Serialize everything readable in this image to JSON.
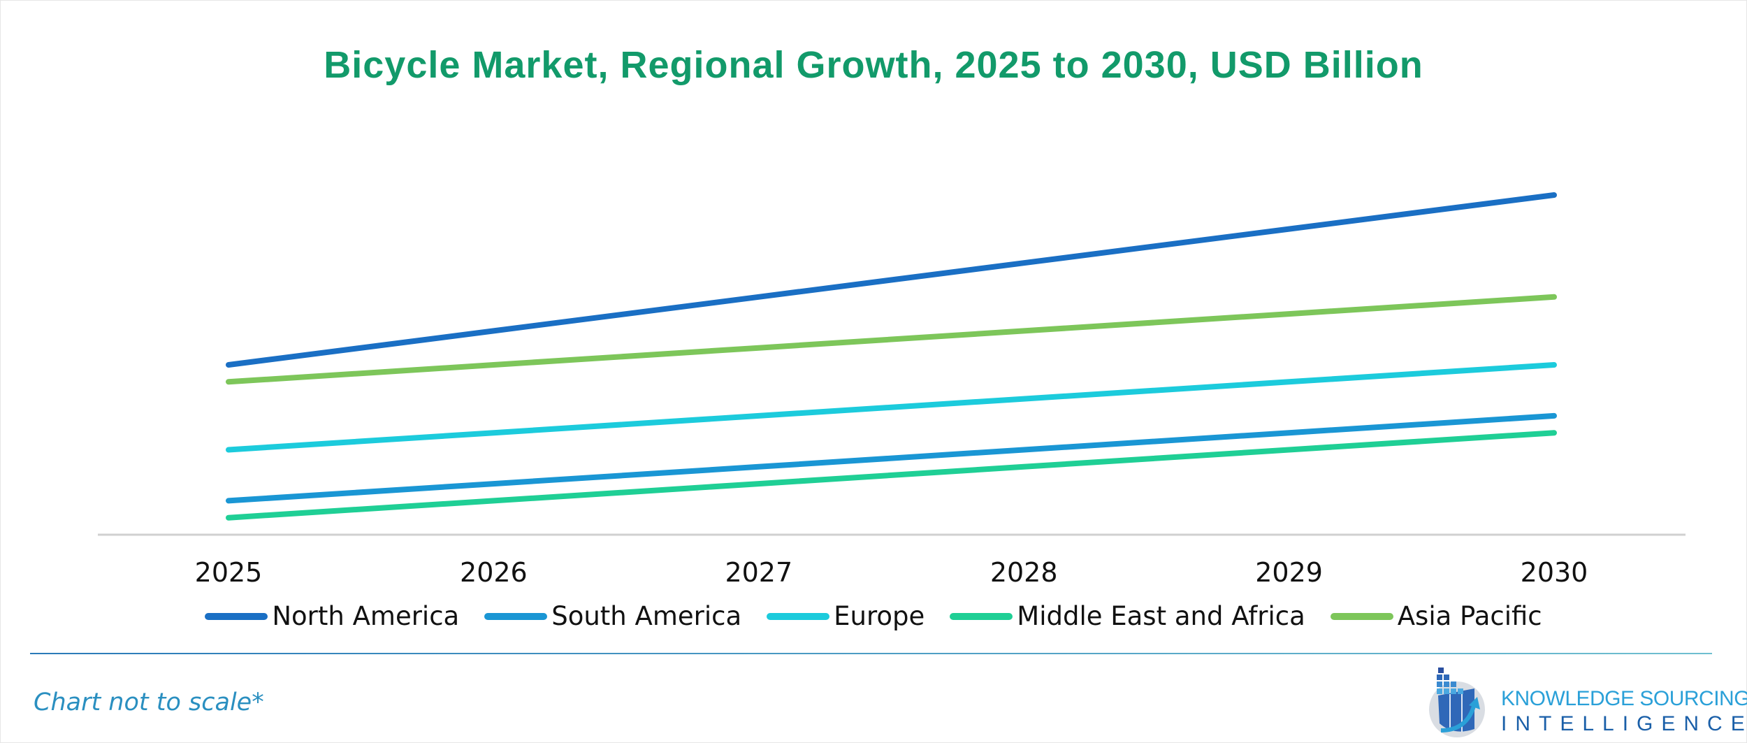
{
  "chart_data": {
    "type": "line",
    "title": "Bicycle Market, Regional Growth, 2025 to 2030, USD Billion",
    "categories": [
      "2025",
      "2026",
      "2027",
      "2028",
      "2029",
      "2030"
    ],
    "series": [
      {
        "name": "North America",
        "color": "#1a6fc4",
        "values": [
          5.0,
          6.0,
          7.0,
          8.0,
          9.0,
          10.0
        ]
      },
      {
        "name": "South America",
        "color": "#1a96d4",
        "values": [
          1.0,
          1.5,
          2.0,
          2.5,
          3.0,
          3.5
        ]
      },
      {
        "name": "Europe",
        "color": "#1ccbdc",
        "values": [
          2.5,
          3.0,
          3.5,
          4.0,
          4.5,
          5.0
        ]
      },
      {
        "name": "Middle East and Africa",
        "color": "#1fcf95",
        "values": [
          0.5,
          1.0,
          1.5,
          2.0,
          2.5,
          3.0
        ]
      },
      {
        "name": "Asia Pacific",
        "color": "#7dc65a",
        "values": [
          4.5,
          5.0,
          5.5,
          6.0,
          6.5,
          7.0
        ]
      }
    ],
    "ylim": [
      0,
      10
    ],
    "grid": false,
    "y_axis_shown": false,
    "legend_position": "bottom",
    "note": "Chart not to scale*"
  },
  "logo": {
    "line1": "KNOWLEDGE SOURCING",
    "line2": "INTELLIGENCE"
  }
}
